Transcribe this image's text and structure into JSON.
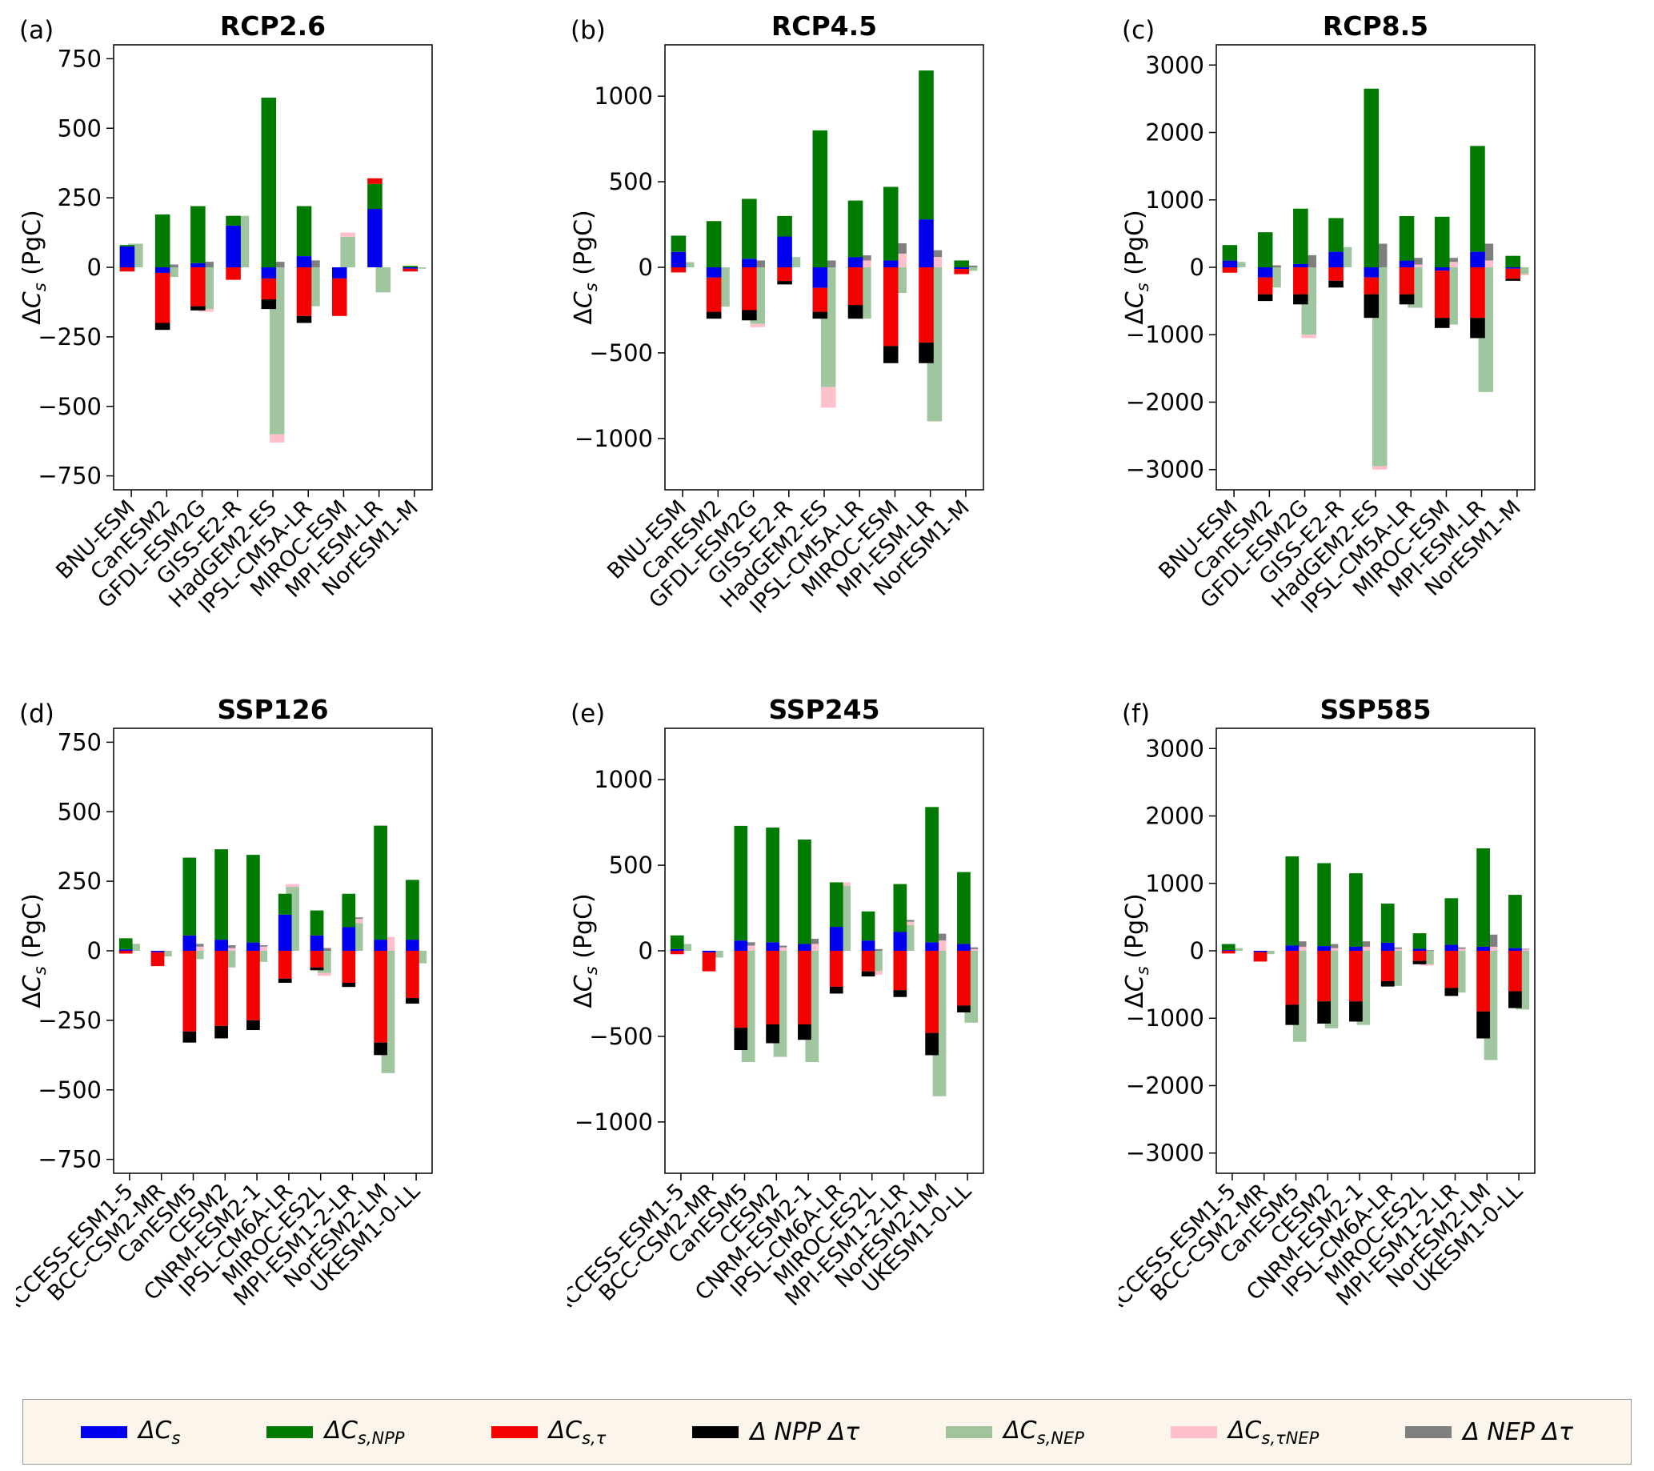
{
  "page": {
    "background": "#ffffff"
  },
  "components": [
    {
      "key": "dCs",
      "color": "#0000ee",
      "opacity": 1,
      "stack": "main"
    },
    {
      "key": "dCs_NPP",
      "color": "#007a00",
      "opacity": 1,
      "stack": "main"
    },
    {
      "key": "dCs_tau",
      "color": "#f40000",
      "opacity": 1,
      "stack": "main"
    },
    {
      "key": "dNPP_dtau",
      "color": "#000000",
      "opacity": 1,
      "stack": "main"
    },
    {
      "key": "dCs_NEP",
      "color": "#8fbc8f",
      "opacity": 0.85,
      "stack": "nep"
    },
    {
      "key": "dCs_tauNEP",
      "color": "#ffc0cb",
      "opacity": 1,
      "stack": "nep"
    },
    {
      "key": "dNEP_dtau",
      "color": "#7f7f7f",
      "opacity": 1,
      "stack": "nep"
    }
  ],
  "legend": {
    "items": [
      {
        "key": "dCs",
        "pre": "ΔC",
        "sub": "s",
        "color": "#0000ee",
        "opacity": 1
      },
      {
        "key": "dCs_NPP",
        "pre": "ΔC",
        "sub": "s,NPP",
        "color": "#007a00",
        "opacity": 1
      },
      {
        "key": "dCs_tau",
        "pre": "ΔC",
        "sub": "s,τ",
        "color": "#f40000",
        "opacity": 1
      },
      {
        "key": "dNPP_dtau",
        "pre": "Δ NPP Δτ",
        "sub": "",
        "color": "#000000",
        "opacity": 1
      },
      {
        "key": "dCs_NEP",
        "pre": "ΔC",
        "sub": "s,NEP",
        "color": "#8fbc8f",
        "opacity": 0.85
      },
      {
        "key": "dCs_tauNEP",
        "pre": "ΔC",
        "sub": "s,τNEP",
        "color": "#ffc0cb",
        "opacity": 1
      },
      {
        "key": "dNEP_dtau",
        "pre": "Δ NEP Δτ",
        "sub": "",
        "color": "#7f7f7f",
        "opacity": 1
      }
    ]
  },
  "chart_data": [
    {
      "type": "bar",
      "panel_label": "(a)",
      "title": "RCP2.6",
      "ylabel": {
        "pre": "Δ",
        "var": "C",
        "sub": "s",
        "suffix": " (PgC)"
      },
      "ylim": 800,
      "yticks": [
        750,
        500,
        250,
        0,
        -250,
        -500,
        -750
      ],
      "categories": [
        "BNU-ESM",
        "CanESM2",
        "GFDL-ESM2G",
        "GISS-E2-R",
        "HadGEM2-ES",
        "IPSL-CM5A-LR",
        "MIROC-ESM",
        "MPI-ESM-LR",
        "NorESM1-M"
      ],
      "series": [
        {
          "key": "dCs",
          "name": "ΔCs",
          "values": [
            75,
            -20,
            15,
            150,
            -40,
            40,
            -40,
            210,
            -5
          ]
        },
        {
          "key": "dCs_NPP",
          "name": "ΔCs,NPP",
          "values": [
            5,
            190,
            205,
            35,
            610,
            180,
            0,
            90,
            5
          ]
        },
        {
          "key": "dCs_tau",
          "name": "ΔCs,τ",
          "values": [
            -15,
            -180,
            -140,
            -45,
            -75,
            -175,
            -135,
            20,
            -10
          ]
        },
        {
          "key": "dNPP_dtau",
          "name": "Δ NPP Δτ",
          "values": [
            0,
            -25,
            -15,
            0,
            -35,
            -25,
            0,
            0,
            0
          ]
        },
        {
          "key": "dCs_NEP",
          "name": "ΔCs,NEP",
          "values": [
            85,
            -35,
            -150,
            185,
            -600,
            -140,
            110,
            -90,
            -5
          ]
        },
        {
          "key": "dCs_tauNEP",
          "name": "ΔCs,τNEP",
          "values": [
            0,
            0,
            -10,
            0,
            -30,
            0,
            15,
            0,
            0
          ]
        },
        {
          "key": "dNEP_dtau",
          "name": "Δ NEP Δτ",
          "values": [
            0,
            10,
            20,
            0,
            20,
            25,
            0,
            0,
            0
          ]
        }
      ]
    },
    {
      "type": "bar",
      "panel_label": "(b)",
      "title": "RCP4.5",
      "ylabel": {
        "pre": "Δ",
        "var": "C",
        "sub": "s",
        "suffix": " (PgC)"
      },
      "ylim": 1300,
      "yticks": [
        1000,
        500,
        0,
        -500,
        -1000
      ],
      "categories": [
        "BNU-ESM",
        "CanESM2",
        "GFDL-ESM2G",
        "GISS-E2-R",
        "HadGEM2-ES",
        "IPSL-CM5A-LR",
        "MIROC-ESM",
        "MPI-ESM-LR",
        "NorESM1-M"
      ],
      "series": [
        {
          "key": "dCs",
          "name": "ΔCs",
          "values": [
            90,
            -60,
            50,
            180,
            -120,
            60,
            40,
            280,
            -10
          ]
        },
        {
          "key": "dCs_NPP",
          "name": "ΔCs,NPP",
          "values": [
            95,
            270,
            350,
            120,
            800,
            330,
            430,
            870,
            40
          ]
        },
        {
          "key": "dCs_tau",
          "name": "ΔCs,τ",
          "values": [
            -30,
            -200,
            -250,
            -80,
            -140,
            -220,
            -460,
            -440,
            -30
          ]
        },
        {
          "key": "dNPP_dtau",
          "name": "Δ NPP Δτ",
          "values": [
            0,
            -40,
            -60,
            -20,
            -40,
            -80,
            -100,
            -120,
            0
          ]
        },
        {
          "key": "dCs_NEP",
          "name": "ΔCs,NEP",
          "values": [
            30,
            -230,
            -330,
            60,
            -700,
            -300,
            -150,
            -900,
            -20
          ]
        },
        {
          "key": "dCs_tauNEP",
          "name": "ΔCs,τNEP",
          "values": [
            0,
            0,
            -20,
            0,
            -120,
            40,
            80,
            60,
            0
          ]
        },
        {
          "key": "dNEP_dtau",
          "name": "Δ NEP Δτ",
          "values": [
            0,
            0,
            40,
            0,
            40,
            30,
            60,
            40,
            10
          ]
        }
      ]
    },
    {
      "type": "bar",
      "panel_label": "(c)",
      "title": "RCP8.5",
      "ylabel": {
        "pre": "Δ",
        "var": "C",
        "sub": "s",
        "suffix": " (PgC)"
      },
      "ylim": 3300,
      "yticks": [
        3000,
        2000,
        1000,
        0,
        -1000,
        -2000,
        -3000
      ],
      "categories": [
        "BNU-ESM",
        "CanESM2",
        "GFDL-ESM2G",
        "GISS-E2-R",
        "HadGEM2-ES",
        "IPSL-CM5A-LR",
        "MIROC-ESM",
        "MPI-ESM-LR",
        "NorESM1-M"
      ],
      "series": [
        {
          "key": "dCs",
          "name": "ΔCs",
          "values": [
            100,
            -150,
            50,
            230,
            -150,
            100,
            -50,
            230,
            -20
          ]
        },
        {
          "key": "dCs_NPP",
          "name": "ΔCs,NPP",
          "values": [
            230,
            520,
            820,
            500,
            2650,
            660,
            750,
            1570,
            170
          ]
        },
        {
          "key": "dCs_tau",
          "name": "ΔCs,τ",
          "values": [
            -80,
            -250,
            -400,
            -200,
            -250,
            -400,
            -700,
            -750,
            -150
          ]
        },
        {
          "key": "dNPP_dtau",
          "name": "Δ NPP Δτ",
          "values": [
            0,
            -100,
            -150,
            -100,
            -350,
            -150,
            -150,
            -300,
            -30
          ]
        },
        {
          "key": "dCs_NEP",
          "name": "ΔCs,NEP",
          "values": [
            80,
            -300,
            -1000,
            300,
            -2950,
            -600,
            -850,
            -1850,
            -100
          ]
        },
        {
          "key": "dCs_tauNEP",
          "name": "ΔCs,τNEP",
          "values": [
            0,
            0,
            -50,
            0,
            -50,
            40,
            80,
            100,
            -20
          ]
        },
        {
          "key": "dNEP_dtau",
          "name": "Δ NEP Δτ",
          "values": [
            0,
            30,
            180,
            0,
            350,
            100,
            60,
            250,
            0
          ]
        }
      ]
    },
    {
      "type": "bar",
      "panel_label": "(d)",
      "title": "SSP126",
      "ylabel": {
        "pre": "Δ",
        "var": "C",
        "sub": "s",
        "suffix": " (PgC)"
      },
      "ylim": 800,
      "yticks": [
        750,
        500,
        250,
        0,
        -250,
        -500,
        -750
      ],
      "categories": [
        "ACCESS-ESM1-5",
        "BCC-CSM2-MR",
        "CanESM5",
        "CESM2",
        "CNRM-ESM2-1",
        "IPSL-CM6A-LR",
        "MIROC-ES2L",
        "MPI-ESM1-2-LR",
        "NorESM2-LM",
        "UKESM1-0-LL"
      ],
      "series": [
        {
          "key": "dCs",
          "name": "ΔCs",
          "values": [
            5,
            -5,
            55,
            40,
            30,
            130,
            55,
            85,
            40,
            40
          ]
        },
        {
          "key": "dCs_NPP",
          "name": "ΔCs,NPP",
          "values": [
            40,
            0,
            280,
            325,
            315,
            75,
            90,
            120,
            410,
            215
          ]
        },
        {
          "key": "dCs_tau",
          "name": "ΔCs,τ",
          "values": [
            -10,
            -50,
            -290,
            -270,
            -250,
            -100,
            -60,
            -115,
            -330,
            -170
          ]
        },
        {
          "key": "dNPP_dtau",
          "name": "Δ NPP Δτ",
          "values": [
            0,
            0,
            -40,
            -45,
            -35,
            -15,
            -10,
            -15,
            -45,
            -20
          ]
        },
        {
          "key": "dCs_NEP",
          "name": "ΔCs,NEP",
          "values": [
            25,
            -20,
            -30,
            -60,
            -40,
            230,
            -80,
            100,
            -440,
            -45
          ]
        },
        {
          "key": "dCs_tauNEP",
          "name": "ΔCs,τNEP",
          "values": [
            0,
            0,
            15,
            10,
            15,
            10,
            -10,
            15,
            50,
            0
          ]
        },
        {
          "key": "dNEP_dtau",
          "name": "Δ NEP Δτ",
          "values": [
            0,
            0,
            10,
            10,
            5,
            0,
            10,
            5,
            0,
            0
          ]
        }
      ]
    },
    {
      "type": "bar",
      "panel_label": "(e)",
      "title": "SSP245",
      "ylabel": {
        "pre": "Δ",
        "var": "C",
        "sub": "s",
        "suffix": " (PgC)"
      },
      "ylim": 1300,
      "yticks": [
        1000,
        500,
        0,
        -500,
        -1000
      ],
      "categories": [
        "ACCESS-ESM1-5",
        "BCC-CSM2-MR",
        "CanESM5",
        "CESM2",
        "CNRM-ESM2-1",
        "IPSL-CM6A-LR",
        "MIROC-ES2L",
        "MPI-ESM1-2-LR",
        "NorESM2-LM",
        "UKESM1-0-LL"
      ],
      "series": [
        {
          "key": "dCs",
          "name": "ΔCs",
          "values": [
            10,
            -10,
            60,
            50,
            40,
            140,
            60,
            110,
            50,
            40
          ]
        },
        {
          "key": "dCs_NPP",
          "name": "ΔCs,NPP",
          "values": [
            80,
            0,
            670,
            670,
            610,
            260,
            170,
            280,
            790,
            420
          ]
        },
        {
          "key": "dCs_tau",
          "name": "ΔCs,τ",
          "values": [
            -20,
            -110,
            -450,
            -430,
            -430,
            -210,
            -120,
            -230,
            -480,
            -320
          ]
        },
        {
          "key": "dNPP_dtau",
          "name": "Δ NPP Δτ",
          "values": [
            0,
            0,
            -130,
            -110,
            -90,
            -40,
            -30,
            -40,
            -130,
            -40
          ]
        },
        {
          "key": "dCs_NEP",
          "name": "ΔCs,NEP",
          "values": [
            40,
            -40,
            -650,
            -620,
            -650,
            380,
            -120,
            150,
            -850,
            -420
          ]
        },
        {
          "key": "dCs_tauNEP",
          "name": "ΔCs,τNEP",
          "values": [
            0,
            0,
            30,
            20,
            40,
            20,
            -20,
            20,
            60,
            10
          ]
        },
        {
          "key": "dNEP_dtau",
          "name": "Δ NEP Δτ",
          "values": [
            0,
            0,
            20,
            10,
            30,
            0,
            10,
            10,
            40,
            10
          ]
        }
      ]
    },
    {
      "type": "bar",
      "panel_label": "(f)",
      "title": "SSP585",
      "ylabel": {
        "pre": "Δ",
        "var": "C",
        "sub": "s",
        "suffix": " (PgC)"
      },
      "ylim": 3300,
      "yticks": [
        3000,
        2000,
        1000,
        0,
        -1000,
        -2000,
        -3000
      ],
      "categories": [
        "ACCESS-ESM1-5",
        "BCC-CSM2-MR",
        "CanESM5",
        "CESM2",
        "CNRM-ESM2-1",
        "IPSL-CM6A-LR",
        "MIROC-ES2L",
        "MPI-ESM1-2-LR",
        "NorESM2-LM",
        "UKESM1-0-LL"
      ],
      "series": [
        {
          "key": "dCs",
          "name": "ΔCs",
          "values": [
            10,
            -20,
            80,
            70,
            60,
            120,
            30,
            90,
            60,
            40
          ]
        },
        {
          "key": "dCs_NPP",
          "name": "ΔCs,NPP",
          "values": [
            90,
            0,
            1320,
            1230,
            1090,
            580,
            230,
            690,
            1460,
            790
          ]
        },
        {
          "key": "dCs_tau",
          "name": "ΔCs,τ",
          "values": [
            -40,
            -140,
            -800,
            -750,
            -750,
            -450,
            -150,
            -550,
            -900,
            -600
          ]
        },
        {
          "key": "dNPP_dtau",
          "name": "Δ NPP Δτ",
          "values": [
            0,
            0,
            -300,
            -330,
            -300,
            -80,
            -50,
            -120,
            -400,
            -250
          ]
        },
        {
          "key": "dCs_NEP",
          "name": "ΔCs,NEP",
          "values": [
            40,
            -50,
            -1350,
            -1150,
            -1100,
            -520,
            -200,
            -620,
            -1620,
            -870
          ]
        },
        {
          "key": "dCs_tauNEP",
          "name": "ΔCs,τNEP",
          "values": [
            0,
            0,
            60,
            40,
            60,
            30,
            -20,
            30,
            60,
            20
          ]
        },
        {
          "key": "dNEP_dtau",
          "name": "Δ NEP Δτ",
          "values": [
            0,
            0,
            80,
            60,
            80,
            20,
            10,
            20,
            180,
            10
          ]
        }
      ]
    }
  ]
}
